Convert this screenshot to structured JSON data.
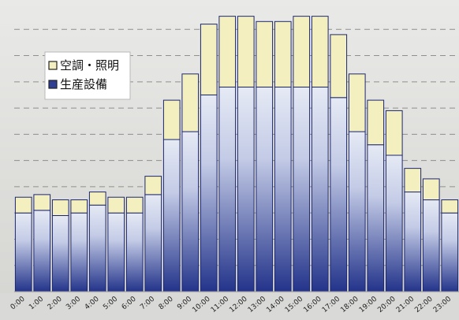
{
  "chart_data": {
    "type": "bar",
    "stacked": true,
    "categories": [
      "0:00",
      "1:00",
      "2:00",
      "3:00",
      "4:00",
      "5:00",
      "6:00",
      "7:00",
      "8:00",
      "9:00",
      "10:00",
      "11:00",
      "12:00",
      "13:00",
      "14:00",
      "15:00",
      "16:00",
      "17:00",
      "18:00",
      "19:00",
      "20:00",
      "21:00",
      "22:00",
      "23:00"
    ],
    "series": [
      {
        "name": "生産設備",
        "color_top": "#e4e8f4",
        "color_bottom": "#24348a",
        "values": [
          30,
          31,
          29,
          30,
          33,
          30,
          30,
          37,
          58,
          61,
          75,
          78,
          78,
          78,
          78,
          78,
          78,
          74,
          61,
          56,
          52,
          38,
          35,
          30
        ]
      },
      {
        "name": "空調・照明",
        "color": "#f4efbe",
        "values": [
          6,
          6,
          6,
          5,
          5,
          6,
          6,
          7,
          15,
          22,
          27,
          27,
          27,
          25,
          25,
          27,
          27,
          24,
          22,
          17,
          17,
          9,
          8,
          5
        ]
      }
    ],
    "title": "",
    "xlabel": "",
    "ylabel": "",
    "ylim": [
      0,
      110
    ],
    "grid": {
      "horizontal": true,
      "style": "dashed",
      "step": 10
    },
    "legend": {
      "placement": "top-left"
    }
  }
}
